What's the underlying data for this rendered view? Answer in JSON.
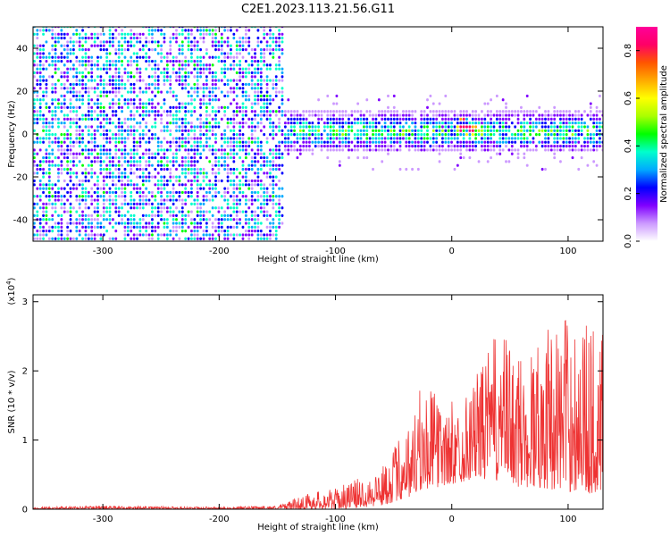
{
  "title": "C2E1.2023.113.21.56.G11",
  "chart_data": [
    {
      "type": "heatmap",
      "xlabel": "Height of straight line (km)",
      "ylabel": "Frequency (Hz)",
      "xlim": [
        -360,
        130
      ],
      "ylim": [
        -50,
        50
      ],
      "xticks": [
        -300,
        -200,
        -100,
        0,
        100
      ],
      "yticks": [
        -40,
        -20,
        0,
        20,
        40
      ],
      "colorbar": {
        "label": "Normalized spectral amplitude",
        "range": [
          0.0,
          0.9
        ],
        "ticks": [
          0.0,
          0.2,
          0.4,
          0.6,
          0.8
        ],
        "colors": [
          "#ffffff",
          "#cc99ff",
          "#8000ff",
          "#0000ff",
          "#00aaff",
          "#00ffcc",
          "#00ff00",
          "#aaff00",
          "#ffff00",
          "#ffaa00",
          "#ff5500",
          "#ff0066",
          "#ff0099"
        ]
      },
      "regions": [
        {
          "x": [
            -360,
            -145
          ],
          "freq_range": [
            -50,
            50
          ],
          "amplitude": 0.1,
          "note": "broadband noise"
        },
        {
          "x": [
            -145,
            130
          ],
          "freq_range": [
            -8,
            8
          ],
          "amplitude": 0.3,
          "note": "narrowband signal near 0 Hz"
        },
        {
          "x": [
            0,
            20
          ],
          "freq_range": [
            -2,
            5
          ],
          "amplitude": 0.8,
          "note": "peak near 0 km"
        }
      ]
    },
    {
      "type": "line",
      "xlabel": "Height of straight line (km)",
      "ylabel": "SNR (10 * v/v)",
      "y_multiplier": "(x10⁴)",
      "y_multiplier_base": "(x10",
      "y_multiplier_exp": "4",
      "y_multiplier_close": ")",
      "xlim": [
        -360,
        130
      ],
      "ylim": [
        0,
        3.1
      ],
      "xticks": [
        -300,
        -200,
        -100,
        0,
        100
      ],
      "yticks": [
        0,
        1,
        2,
        3
      ],
      "color": "#ee3333",
      "envelope": {
        "x": [
          -360,
          -300,
          -200,
          -150,
          -120,
          -100,
          -80,
          -60,
          -40,
          -20,
          0,
          20,
          40,
          60,
          80,
          100,
          130
        ],
        "upper": [
          0.03,
          0.05,
          0.03,
          0.05,
          0.25,
          0.3,
          0.45,
          0.6,
          1.2,
          1.8,
          1.3,
          1.9,
          2.6,
          2.2,
          2.6,
          2.8,
          2.6
        ],
        "lower": [
          0.0,
          0.0,
          0.0,
          0.0,
          0.0,
          0.0,
          0.02,
          0.05,
          0.15,
          0.3,
          0.35,
          0.45,
          0.4,
          0.3,
          0.3,
          0.25,
          0.2
        ]
      }
    }
  ]
}
